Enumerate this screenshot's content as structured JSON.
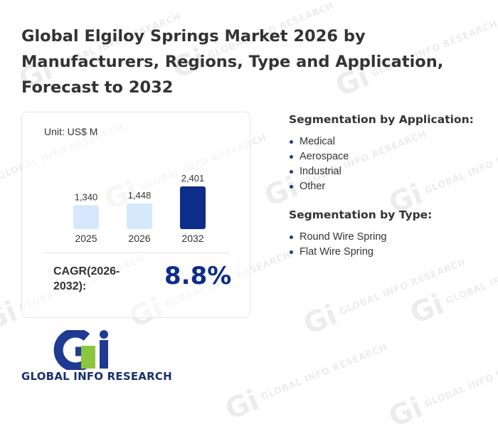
{
  "title": "Global Elgiloy Springs Market 2026 by Manufacturers, Regions, Type and Application, Forecast to 2032",
  "unit_label": "Unit: US$ M",
  "chart_data": {
    "type": "bar",
    "categories": [
      "2025",
      "2026",
      "2032"
    ],
    "values": [
      1340,
      1448,
      2401
    ],
    "value_labels": [
      "1,340",
      "1,448",
      "2,401"
    ],
    "colors": [
      "#d6e8fb",
      "#d6e8fb",
      "#0d2d8a"
    ],
    "ylim": [
      0,
      2401
    ],
    "grid": false
  },
  "cagr": {
    "label": "CAGR(2026-2032):",
    "value": "8.8%"
  },
  "segmentation_application": {
    "heading": "Segmentation by Application:",
    "items": [
      "Medical",
      "Aerospace",
      "Industrial",
      "Other"
    ]
  },
  "segmentation_type": {
    "heading": "Segmentation by Type:",
    "items": [
      "Round Wire Spring",
      "Flat Wire Spring"
    ]
  },
  "logo": {
    "mark": "Gi",
    "brand_text": "GLOBAL INFO RESEARCH",
    "colors": {
      "g_blue": "#1f3a93",
      "accent_green": "#8cc63f",
      "text": "#1a2f6e"
    }
  },
  "watermark": {
    "mark": "Gi",
    "text": "GLOBAL INFO RESEARCH"
  }
}
